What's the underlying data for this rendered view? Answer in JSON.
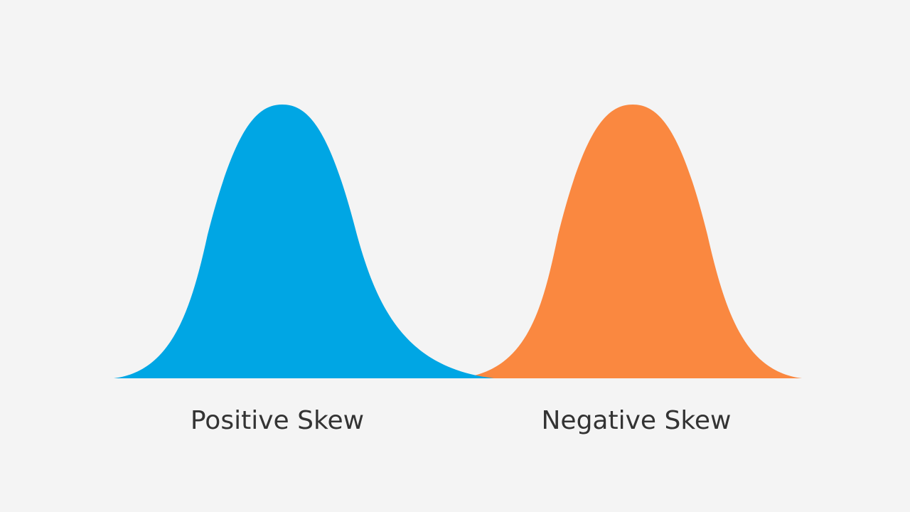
{
  "labels": {
    "left": "Positive Skew",
    "right": "Negative Skew"
  }
}
